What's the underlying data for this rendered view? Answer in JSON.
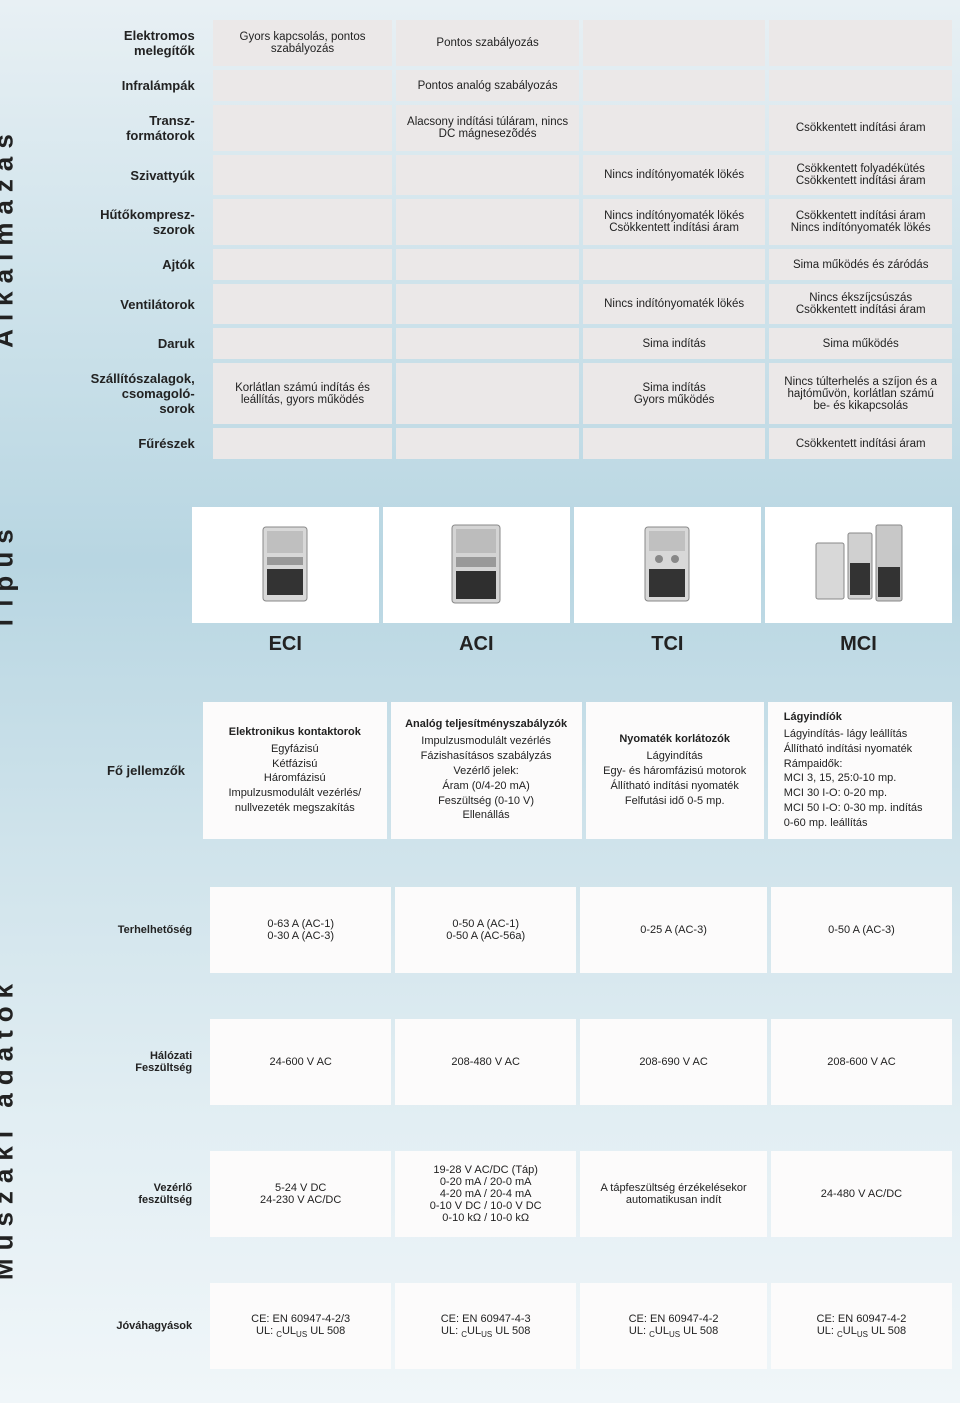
{
  "sideLabels": {
    "alk": "Alkalmazás",
    "tipus": "Típus",
    "muszaki": "Műszaki adatok"
  },
  "alk": {
    "rows": [
      {
        "label": "Elektromos melegítők",
        "c0": "Gyors kapcsolás, pontos szabályozás",
        "c1": "Pontos szabályozás",
        "c2": "",
        "c3": ""
      },
      {
        "label": "Infralámpák",
        "c0": "",
        "c1": "Pontos analóg szabályozás",
        "c2": "",
        "c3": ""
      },
      {
        "label": "Transz-formátorok",
        "c0": "",
        "c1": "Alacsony indítási túláram, nincs DC mágnesezõdés",
        "c2": "",
        "c3": "Csökkentett indítási áram"
      },
      {
        "label": "Szivattyúk",
        "c0": "",
        "c1": "",
        "c2": "Nincs indítónyomaték lökés",
        "c3": "Csökkentett folyadékütés Csökkentett indítási áram"
      },
      {
        "label": "Hűtőkompresz-szorok",
        "c0": "",
        "c1": "",
        "c2": "Nincs indítónyomaték lökés Csökkentett indítási áram",
        "c3": "Csökkentett indítási áram Nincs indítónyomaték lökés"
      },
      {
        "label": "Ajtók",
        "c0": "",
        "c1": "",
        "c2": "",
        "c3": "Sima működés és záródás"
      },
      {
        "label": "Ventilátorok",
        "c0": "",
        "c1": "",
        "c2": "Nincs indítónyomaték lökés",
        "c3": "Nincs ékszíjcsúszás Csökkentett indítási áram"
      },
      {
        "label": "Daruk",
        "c0": "",
        "c1": "",
        "c2": "Sima indítás",
        "c3": "Sima működés"
      },
      {
        "label": "Szállítószalagok, csomagoló-sorok",
        "c0": "Korlátlan számú indítás és leállítás, gyors működés",
        "c1": "",
        "c2": "Sima indítás Gyors működés",
        "c3": "Nincs túlterhelés a szíjon és a hajtóművön, korlátlan számú be- és kikapcsolás"
      },
      {
        "label": "Fűrészek",
        "c0": "",
        "c1": "",
        "c2": "",
        "c3": "Csökkentett indítási áram"
      }
    ]
  },
  "tipus": {
    "names": [
      "ECI",
      "ACI",
      "TCI",
      "MCI"
    ]
  },
  "fojel": {
    "label": "Fő jellemzők",
    "cols": [
      {
        "title": "Elektronikus kontaktorok",
        "lines": [
          "Egyfázisú",
          "Kétfázisú",
          "Háromfázisú",
          "Impulzusmodulált vezérlés/",
          "nullvezeték megszakítás"
        ]
      },
      {
        "title": "Analóg teljesítményszabályzók",
        "lines": [
          "Impulzusmodulált vezérlés",
          "Fázishasításos szabályzás",
          "Vezérlő jelek:",
          "Áram (0/4-20 mA)",
          "Feszültség (0-10 V)",
          "Ellenállás"
        ]
      },
      {
        "title": "Nyomaték korlátozók",
        "lines": [
          "Lágyindítás",
          "Egy- és háromfázisú motorok",
          "Állítható indítási nyomaték",
          "Felfutási idő 0-5 mp."
        ]
      },
      {
        "title": "Lágyindíók",
        "lines": [
          "Lágyindítás- lágy leállítás",
          "Állítható indítási nyomaték",
          "Rámpaidők:",
          "MCI 3, 15, 25:0-10 mp.",
          "MCI 30 I-O:    0-20 mp.",
          "MCI 50 I-O:    0-30 mp. indítás",
          "                    0-60 mp. leállítás"
        ]
      }
    ]
  },
  "muszaki": {
    "rows": [
      {
        "label": "Terhelhetőség",
        "c": [
          "0-63 A (AC-1)\n0-30 A (AC-3)",
          "0-50 A (AC-1)\n0-50 A (AC-56a)",
          "0-25 A (AC-3)",
          "0-50 A (AC-3)"
        ]
      },
      {
        "label": "Hálózati Feszültség",
        "c": [
          "24-600 V AC",
          "208-480 V AC",
          "208-690 V AC",
          "208-600 V AC"
        ]
      },
      {
        "label": "Vezérlő feszültség",
        "c": [
          "5-24 V DC\n24-230 V AC/DC",
          "19-28 V AC/DC (Táp)\n0-20 mA / 20-0 mA\n4-20 mA / 20-4 mA\n0-10 V DC / 10-0 V DC\n0-10 kΩ / 10-0 kΩ",
          "A tápfeszültség érzékelésekor automatikusan indít",
          "24-480 V AC/DC"
        ]
      },
      {
        "label": "Jóváhagyások",
        "c": [
          "CE: EN 60947-4-2/3\nUL: CULUS UL 508",
          "CE: EN 60947-4-3\nUL: CULUS UL 508",
          "CE: EN 60947-4-2\nUL: CULUS UL 508",
          "CE: EN 60947-4-2\nUL: CULUS UL 508"
        ]
      }
    ]
  },
  "colors": {
    "cell": "#ebe8e8",
    "white": "#fcfbfb"
  }
}
